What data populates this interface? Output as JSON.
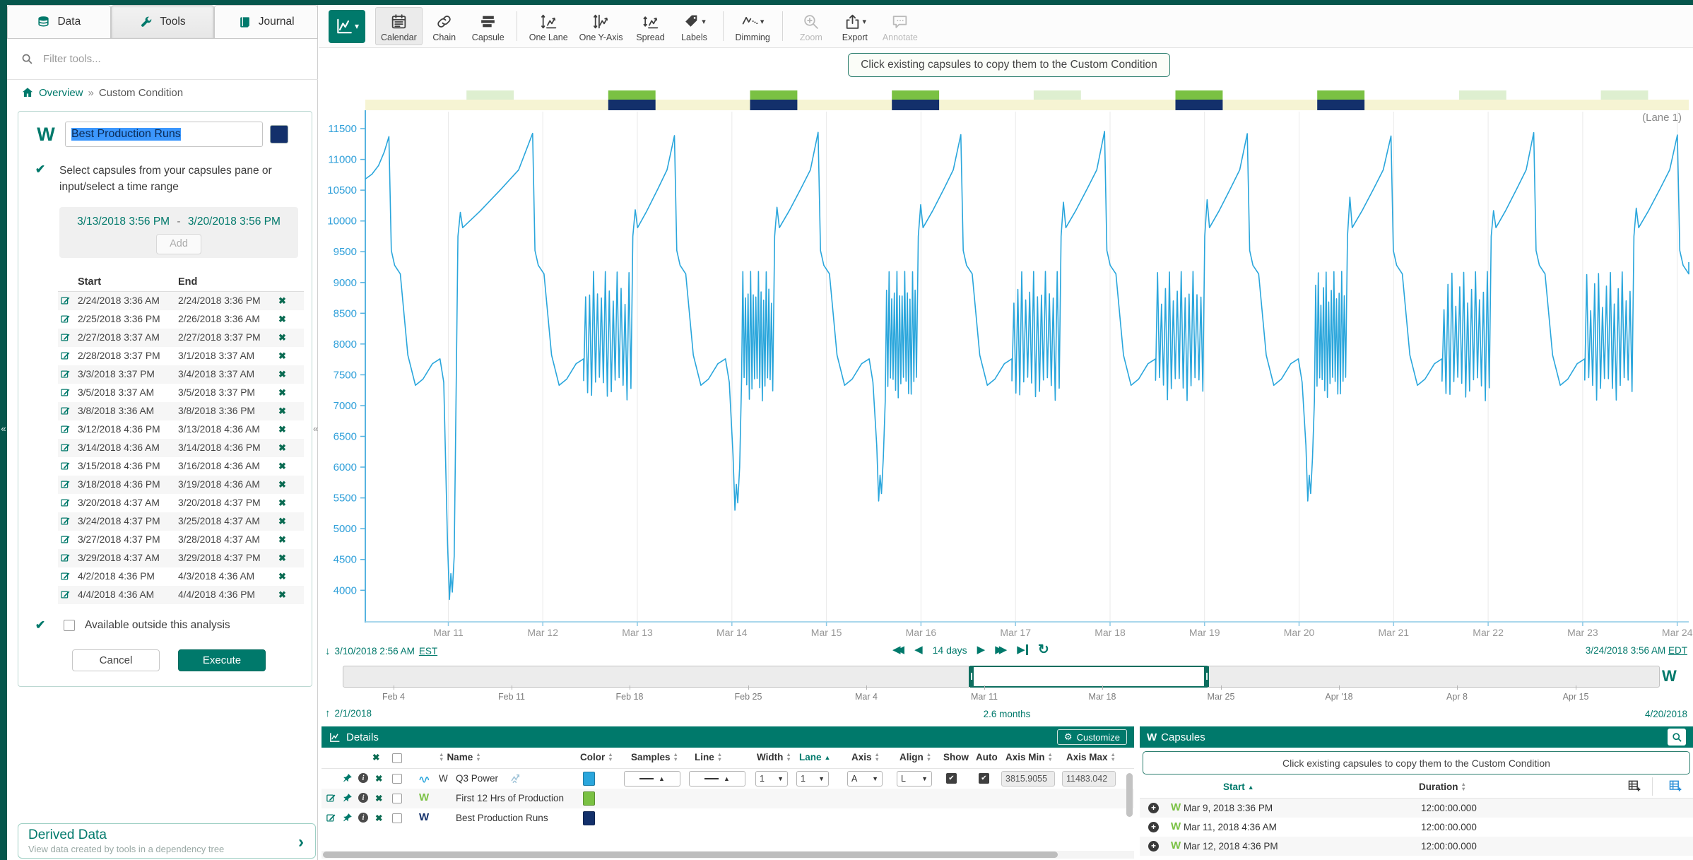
{
  "colors": {
    "brand_green": "#00796B",
    "dark_green": "#06564C",
    "signal_blue": "#2AA6DC",
    "capsule_green": "#7AC143",
    "capsule_navy": "#13306B",
    "band_yellow": "#F6F4D3"
  },
  "sidebar": {
    "tabs": [
      {
        "label": "Data"
      },
      {
        "label": "Tools"
      },
      {
        "label": "Journal"
      }
    ],
    "filter_placeholder": "Filter tools...",
    "breadcrumb": {
      "root": "Overview",
      "separator": "»",
      "current": "Custom Condition"
    },
    "tool": {
      "name_value": "Best Production Runs",
      "instruction": "Select capsules from your capsules pane or input/select a time range",
      "range_start": "3/13/2018 3:56 PM",
      "range_separator": "-",
      "range_end": "3/20/2018 3:56 PM",
      "add_label": "Add",
      "table_headers": {
        "start": "Start",
        "end": "End"
      },
      "capsule_rows": [
        [
          "2/24/2018 3:36 AM",
          "2/24/2018 3:36 PM"
        ],
        [
          "2/25/2018 3:36 PM",
          "2/26/2018 3:36 AM"
        ],
        [
          "2/27/2018 3:37 AM",
          "2/27/2018 3:37 PM"
        ],
        [
          "2/28/2018 3:37 PM",
          "3/1/2018 3:37 AM"
        ],
        [
          "3/3/2018 3:37 PM",
          "3/4/2018 3:37 AM"
        ],
        [
          "3/5/2018 3:37 AM",
          "3/5/2018 3:37 PM"
        ],
        [
          "3/8/2018 3:36 AM",
          "3/8/2018 3:36 PM"
        ],
        [
          "3/12/2018 4:36 PM",
          "3/13/2018 4:36 AM"
        ],
        [
          "3/14/2018 4:36 AM",
          "3/14/2018 4:36 PM"
        ],
        [
          "3/15/2018 4:36 PM",
          "3/16/2018 4:36 AM"
        ],
        [
          "3/18/2018 4:36 PM",
          "3/19/2018 4:36 AM"
        ],
        [
          "3/20/2018 4:37 AM",
          "3/20/2018 4:37 PM"
        ],
        [
          "3/24/2018 4:37 PM",
          "3/25/2018 4:37 AM"
        ],
        [
          "3/27/2018 4:37 PM",
          "3/28/2018 4:37 AM"
        ],
        [
          "3/29/2018 4:37 AM",
          "3/29/2018 4:37 PM"
        ],
        [
          "4/2/2018 4:36 PM",
          "4/3/2018 4:36 AM"
        ],
        [
          "4/4/2018 4:36 AM",
          "4/4/2018 4:36 PM"
        ]
      ],
      "available_label": "Available outside this analysis",
      "cancel_label": "Cancel",
      "execute_label": "Execute"
    },
    "derived_data": {
      "title": "Derived Data",
      "subtitle": "View data created by tools in a dependency tree"
    }
  },
  "toolbar": {
    "items": [
      {
        "label": "Calendar",
        "icon": "calendar",
        "active": true
      },
      {
        "label": "Chain",
        "icon": "chain"
      },
      {
        "label": "Capsule",
        "icon": "capsule"
      },
      {
        "separator": true
      },
      {
        "label": "One Lane",
        "icon": "one-lane"
      },
      {
        "label": "One Y-Axis",
        "icon": "one-y-axis"
      },
      {
        "label": "Spread",
        "icon": "spread"
      },
      {
        "label": "Labels",
        "icon": "labels",
        "caret": true
      },
      {
        "separator": true
      },
      {
        "label": "Dimming",
        "icon": "dimming",
        "caret": true
      },
      {
        "separator": true
      },
      {
        "label": "Zoom",
        "icon": "zoom",
        "disabled": true
      },
      {
        "label": "Export",
        "icon": "export",
        "caret": true
      },
      {
        "label": "Annotate",
        "icon": "annotate",
        "disabled": true
      }
    ]
  },
  "chart": {
    "banner": "Click existing capsules to copy them to the Custom Condition",
    "lane_label": "(Lane 1)"
  },
  "chart_data": {
    "type": "line",
    "series": [
      {
        "name": "Q3 Power",
        "color": "#2AA6DC"
      }
    ],
    "duration_days": 14,
    "start_value": 10680,
    "ylim": [
      3480,
      11800
    ],
    "y_ticks": [
      11500,
      11000,
      10500,
      10000,
      9500,
      9000,
      8500,
      8000,
      7500,
      7000,
      6500,
      6000,
      5500,
      5000,
      4500,
      4000
    ],
    "x_ticks": [
      "Mar 11",
      "Mar 12",
      "Mar 13",
      "Mar 14",
      "Mar 15",
      "Mar 16",
      "Mar 17",
      "Mar 18",
      "Mar 19",
      "Mar 20",
      "Mar 21",
      "Mar 22",
      "Mar 23",
      "Mar 24"
    ],
    "first_tick_day": 0.878,
    "grid": true,
    "legend": "none",
    "cycles": [
      {
        "crash_day": 0.25,
        "plunge": 3850,
        "burst": false
      },
      {
        "crash_day": 1.77,
        "plunge": null,
        "burst": true
      },
      {
        "crash_day": 3.27,
        "plunge": 5300,
        "burst": true
      },
      {
        "crash_day": 4.79,
        "plunge": 5450,
        "burst": true
      },
      {
        "crash_day": 6.3,
        "plunge": null,
        "burst": true
      },
      {
        "crash_day": 7.82,
        "plunge": null,
        "burst": true
      },
      {
        "crash_day": 9.33,
        "plunge": 5450,
        "burst": true
      },
      {
        "crash_day": 10.85,
        "plunge": null,
        "burst": true
      },
      {
        "crash_day": 12.36,
        "plunge": null,
        "burst": true
      },
      {
        "crash_day": 13.88,
        "plunge": null,
        "burst": false
      }
    ],
    "capsule_lane": {
      "band_color": "#F6F4D3",
      "selected_color_top": "#7AC143",
      "selected_color_bottom": "#13306B",
      "selected": [
        {
          "start_day": 2.57,
          "end_day": 3.07
        },
        {
          "start_day": 4.07,
          "end_day": 4.57
        },
        {
          "start_day": 5.57,
          "end_day": 6.07
        },
        {
          "start_day": 8.57,
          "end_day": 9.07
        },
        {
          "start_day": 10.07,
          "end_day": 10.57
        }
      ],
      "unselected": [
        {
          "start_day": 1.07,
          "end_day": 1.57
        },
        {
          "start_day": 7.07,
          "end_day": 7.57
        },
        {
          "start_day": 11.57,
          "end_day": 12.07
        },
        {
          "start_day": 13.07,
          "end_day": 13.57
        }
      ]
    }
  },
  "nav": {
    "start": "3/10/2018 2:56 AM",
    "start_tz": "EST",
    "duration": "14 days",
    "end": "3/24/2018 3:56 AM",
    "end_tz": "EDT"
  },
  "timeline": {
    "start_label": "2/1/2018",
    "range_label": "2.6 months",
    "end_label": "4/20/2018",
    "total_days": 78,
    "selection_start_day": 37.12,
    "selection_end_day": 51.16,
    "ticks": [
      {
        "label": "Feb 4",
        "day": 3
      },
      {
        "label": "Feb 11",
        "day": 10
      },
      {
        "label": "Feb 18",
        "day": 17
      },
      {
        "label": "Feb 25",
        "day": 24
      },
      {
        "label": "Mar 4",
        "day": 31
      },
      {
        "label": "Mar 11",
        "day": 38
      },
      {
        "label": "Mar 18",
        "day": 45
      },
      {
        "label": "Mar 25",
        "day": 52
      },
      {
        "label": "Apr '18",
        "day": 59
      },
      {
        "label": "Apr 8",
        "day": 66
      },
      {
        "label": "Apr 15",
        "day": 73
      }
    ]
  },
  "details": {
    "title": "Details",
    "customize_label": "Customize",
    "columns": {
      "name": "Name",
      "color": "Color",
      "samples": "Samples",
      "line": "Line",
      "width": "Width",
      "lane": "Lane",
      "axis": "Axis",
      "align": "Align",
      "show": "Show",
      "auto": "Auto",
      "axis_min": "Axis Min",
      "axis_max": "Axis Max"
    },
    "rows": [
      {
        "kind": "signal",
        "unit_prefix": "W",
        "name": "Q3 Power",
        "color": "#2AA6DC",
        "width": "1",
        "lane": "1",
        "axis": "A",
        "align": "L",
        "show": true,
        "auto": true,
        "axis_min": "3815.9055",
        "axis_max": "11483.042"
      },
      {
        "kind": "condition",
        "name": "First 12 Hrs of Production",
        "color": "#7AC143"
      },
      {
        "kind": "condition",
        "name": "Best Production Runs",
        "color": "#13306B"
      }
    ]
  },
  "capsules_panel": {
    "title": "Capsules",
    "banner": "Click existing capsules to copy them to the Custom Condition",
    "columns": {
      "start": "Start",
      "duration": "Duration"
    },
    "rows": [
      {
        "start": "Mar 9, 2018 3:36 PM",
        "duration": "12:00:00.000"
      },
      {
        "start": "Mar 11, 2018 4:36 AM",
        "duration": "12:00:00.000"
      },
      {
        "start": "Mar 12, 2018 4:36 PM",
        "duration": "12:00:00.000"
      }
    ]
  }
}
